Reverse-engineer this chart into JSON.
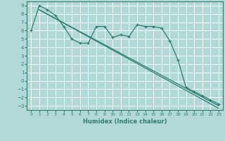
{
  "xlabel": "Humidex (Indice chaleur)",
  "bg_color": "#b2d8d8",
  "grid_color": "#ffffff",
  "line_color": "#2e7d72",
  "xlim": [
    -0.5,
    23.5
  ],
  "ylim": [
    -3.5,
    9.5
  ],
  "xticks": [
    0,
    1,
    2,
    3,
    4,
    5,
    6,
    7,
    8,
    9,
    10,
    11,
    12,
    13,
    14,
    15,
    16,
    17,
    18,
    19,
    20,
    21,
    22,
    23
  ],
  "yticks": [
    -3,
    -2,
    -1,
    0,
    1,
    2,
    3,
    4,
    5,
    6,
    7,
    8,
    9
  ],
  "line1_x": [
    0,
    1,
    2,
    3,
    4,
    5,
    6,
    7,
    8,
    9,
    10,
    11,
    12,
    13,
    14,
    15,
    16,
    17,
    18,
    19,
    20,
    21,
    22,
    23
  ],
  "line1_y": [
    6.0,
    9.0,
    8.5,
    7.8,
    6.5,
    5.0,
    4.5,
    4.5,
    6.5,
    6.5,
    5.2,
    5.5,
    5.3,
    6.7,
    6.5,
    6.5,
    6.3,
    4.8,
    2.5,
    -0.8,
    -1.3,
    -1.8,
    -2.3,
    -2.8
  ],
  "line2_x": [
    1,
    23
  ],
  "line2_y": [
    8.5,
    -3.0
  ],
  "line3_x": [
    1,
    23
  ],
  "line3_y": [
    8.5,
    -3.3
  ]
}
